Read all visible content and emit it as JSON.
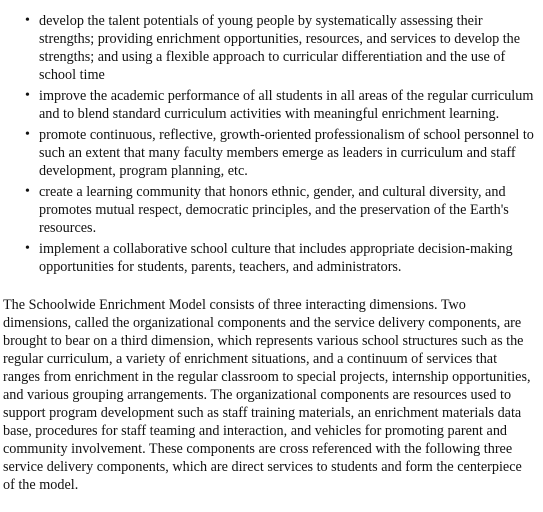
{
  "goals": [
    "develop the talent potentials of young people by systematically assessing their strengths; providing enrichment opportunities, resources, and services to develop the strengths; and using a flexible approach to curricular differentiation and the use of school time",
    "improve the academic performance of all students in all areas of the regular curriculum and to blend standard curriculum activities with meaningful enrichment learning.",
    "promote continuous, reflective, growth-oriented professionalism of school personnel to such an extent that many faculty members emerge as leaders in curriculum and staff development, program planning, etc.",
    "create a learning community that honors ethnic, gender, and cultural diversity, and promotes mutual respect, democratic principles, and the preservation of the Earth's resources.",
    "implement a collaborative school culture that includes appropriate decision-making opportunities for students, parents, teachers, and administrators."
  ],
  "paragraph": "The Schoolwide Enrichment Model consists of three interacting dimensions. Two dimensions, called the organizational components and the service delivery components, are brought to bear on a third dimension, which represents various school structures such as the regular curriculum, a variety of enrichment situations, and a continuum of services that ranges from enrichment in the regular classroom to special projects, internship opportunities, and various grouping arrangements. The organizational components are resources used to support program development such as staff training materials, an enrichment materials data base, procedures for staff teaming and interaction, and vehicles for promoting parent and community involvement. These components are cross referenced with the following three service delivery components, which are direct services to students and form the centerpiece of the model."
}
